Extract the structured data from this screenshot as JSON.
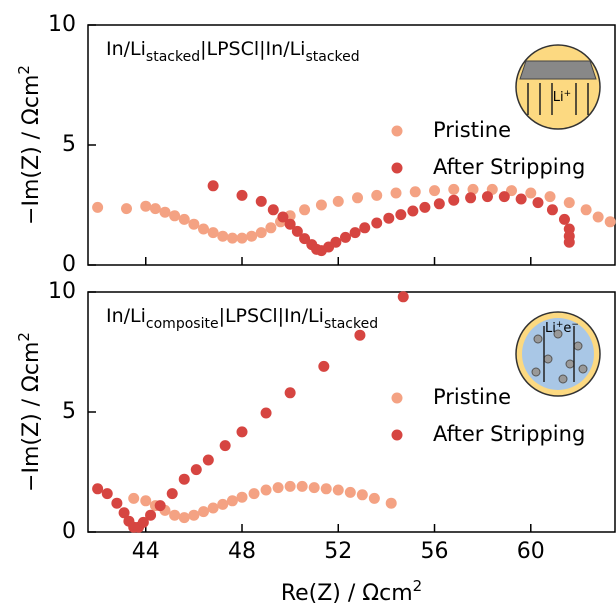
{
  "chart_data": [
    {
      "type": "scatter",
      "label": [
        {
          "text": "In/Li"
        },
        {
          "sub": "stacked"
        },
        {
          "text": "|LPSCl|In/Li"
        },
        {
          "sub": "stacked"
        }
      ],
      "ylabel": [
        "−Im(Z) / Ωcm",
        "2"
      ],
      "inset_label": [
        "Li",
        "+"
      ],
      "xlim": [
        41.6,
        63.5
      ],
      "xticks": [
        44,
        48,
        52,
        56,
        60
      ],
      "ylim": [
        0,
        10
      ],
      "yticks": [
        0,
        5,
        10
      ],
      "legend": "center right",
      "series": [
        {
          "name": "Pristine",
          "color": "#f4a283",
          "x": [
            42.0,
            43.2,
            44.0,
            44.4,
            44.8,
            45.2,
            45.6,
            46.0,
            46.4,
            46.8,
            47.2,
            47.6,
            48.0,
            48.4,
            48.8,
            49.2,
            49.6,
            50.0,
            50.6,
            51.3,
            52.0,
            52.8,
            53.6,
            54.4,
            55.2,
            56.0,
            56.8,
            57.6,
            58.4,
            59.2,
            60.0,
            60.8,
            61.6,
            62.3,
            62.8,
            63.3
          ],
          "values": [
            2.4,
            2.35,
            2.45,
            2.35,
            2.2,
            2.05,
            1.9,
            1.7,
            1.5,
            1.35,
            1.2,
            1.12,
            1.12,
            1.2,
            1.35,
            1.55,
            1.8,
            2.05,
            2.3,
            2.5,
            2.65,
            2.8,
            2.9,
            3.0,
            3.05,
            3.1,
            3.15,
            3.15,
            3.15,
            3.1,
            3.0,
            2.85,
            2.6,
            2.3,
            2.0,
            1.8
          ]
        },
        {
          "name": "After Stripping",
          "color": "#d64541",
          "x": [
            46.8,
            48.0,
            48.8,
            49.3,
            49.7,
            50.0,
            50.3,
            50.6,
            50.9,
            51.1,
            51.3,
            51.6,
            51.9,
            52.3,
            52.7,
            53.1,
            53.6,
            54.1,
            54.6,
            55.1,
            55.6,
            56.2,
            56.8,
            57.5,
            58.2,
            58.9,
            59.6,
            60.3,
            60.9,
            61.4,
            61.6,
            61.6,
            61.6
          ],
          "values": [
            3.3,
            2.9,
            2.65,
            2.3,
            2.0,
            1.7,
            1.4,
            1.1,
            0.85,
            0.65,
            0.6,
            0.75,
            0.95,
            1.15,
            1.35,
            1.55,
            1.75,
            1.95,
            2.1,
            2.25,
            2.4,
            2.55,
            2.7,
            2.8,
            2.85,
            2.85,
            2.75,
            2.6,
            2.3,
            1.9,
            1.5,
            1.2,
            0.95
          ]
        }
      ]
    },
    {
      "type": "scatter",
      "label": [
        {
          "text": "In/Li"
        },
        {
          "sub": "composite"
        },
        {
          "text": "|LPSCl|In/Li"
        },
        {
          "sub": "stacked"
        }
      ],
      "ylabel": [
        "−Im(Z) / Ωcm",
        "2"
      ],
      "xlabel": [
        "Re(Z) / Ωcm",
        "2"
      ],
      "inset_label": [
        "Li",
        "+",
        "e",
        "−"
      ],
      "xlim": [
        41.6,
        63.5
      ],
      "xticks": [
        44,
        48,
        52,
        56,
        60
      ],
      "ylim": [
        0,
        10
      ],
      "yticks": [
        0,
        5,
        10
      ],
      "legend": "center right",
      "series": [
        {
          "name": "Pristine",
          "color": "#f4a283",
          "x": [
            43.5,
            44.0,
            44.4,
            44.8,
            45.2,
            45.6,
            46.0,
            46.4,
            46.8,
            47.2,
            47.6,
            48.0,
            48.5,
            49.0,
            49.5,
            50.0,
            50.5,
            51.0,
            51.5,
            52.0,
            52.5,
            53.0,
            53.5,
            54.2
          ],
          "values": [
            1.4,
            1.3,
            1.1,
            0.9,
            0.7,
            0.6,
            0.7,
            0.85,
            1.0,
            1.15,
            1.3,
            1.45,
            1.6,
            1.75,
            1.85,
            1.9,
            1.9,
            1.85,
            1.8,
            1.75,
            1.65,
            1.55,
            1.4,
            1.2
          ]
        },
        {
          "name": "After Stripping",
          "color": "#d64541",
          "x": [
            42.0,
            42.4,
            42.8,
            43.1,
            43.3,
            43.5,
            43.7,
            43.9,
            44.2,
            44.6,
            45.1,
            45.6,
            46.1,
            46.6,
            47.3,
            48.0,
            49.0,
            50.0,
            51.4,
            52.9,
            54.7
          ],
          "values": [
            1.8,
            1.6,
            1.2,
            0.8,
            0.45,
            0.2,
            0.2,
            0.4,
            0.7,
            1.1,
            1.6,
            2.2,
            2.6,
            3.0,
            3.6,
            4.17,
            4.96,
            5.8,
            6.9,
            8.2,
            9.8
          ]
        }
      ]
    }
  ]
}
